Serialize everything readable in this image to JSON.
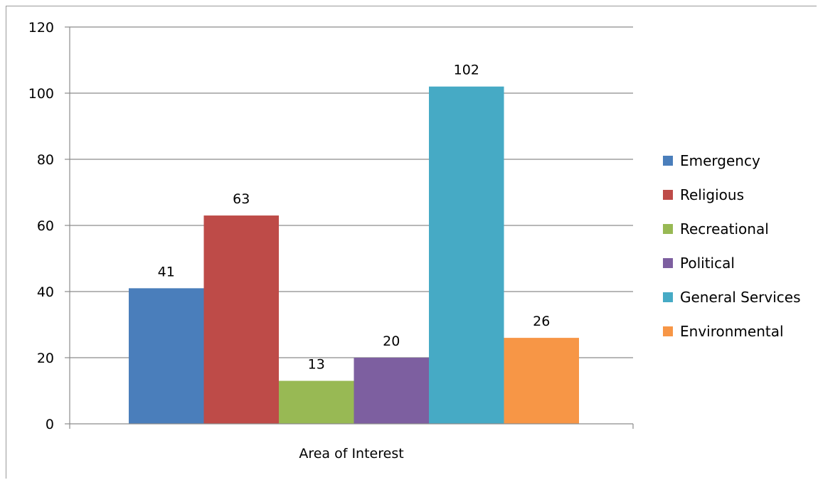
{
  "chart_data": {
    "type": "bar",
    "title": "",
    "xlabel": "",
    "ylabel": "",
    "categories": [
      "Area of Interest"
    ],
    "series": [
      {
        "name": "Emergency",
        "values": [
          41
        ],
        "color": "#4a7ebb"
      },
      {
        "name": "Religious",
        "values": [
          63
        ],
        "color": "#be4b48"
      },
      {
        "name": "Recreational",
        "values": [
          13
        ],
        "color": "#98b954"
      },
      {
        "name": "Political",
        "values": [
          20
        ],
        "color": "#7d5fa0"
      },
      {
        "name": "General Services",
        "values": [
          102
        ],
        "color": "#46aac5"
      },
      {
        "name": "Environmental",
        "values": [
          26
        ],
        "color": "#f79646"
      }
    ],
    "ylim": [
      0,
      120
    ],
    "yticks": [
      0,
      20,
      40,
      60,
      80,
      100,
      120
    ],
    "grid": true,
    "data_labels": true,
    "legend": "right"
  }
}
